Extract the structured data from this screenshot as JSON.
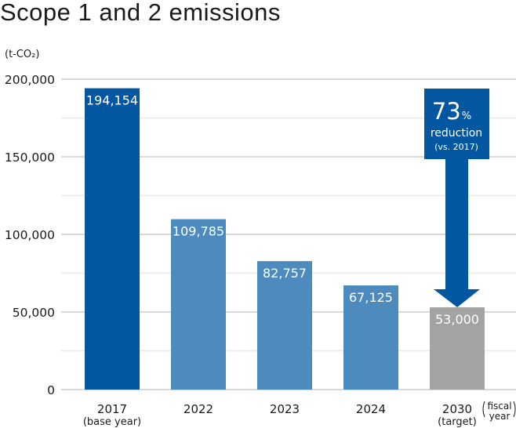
{
  "chart_data": {
    "type": "bar",
    "title": "Scope 1 and 2 emissions",
    "ylabel": "(t-CO₂)",
    "xlabel_note": [
      "fiscal",
      "year"
    ],
    "ylim": [
      0,
      200000
    ],
    "yticks": [
      0,
      50000,
      100000,
      150000,
      200000
    ],
    "ytick_labels": [
      "0",
      "50,000",
      "100,000",
      "150,000",
      "200,000"
    ],
    "minor_gridlines": [
      25000,
      75000,
      125000,
      175000
    ],
    "grid": true,
    "categories": [
      "2017",
      "2022",
      "2023",
      "2024",
      "2030"
    ],
    "category_sublabels": [
      "(base year)",
      "",
      "",
      "",
      "(target)"
    ],
    "values": [
      194154,
      109785,
      82757,
      67125,
      53000
    ],
    "value_labels": [
      "194,154",
      "109,785",
      "82,757",
      "67,125",
      "53,000"
    ],
    "bar_colors": [
      "#0356a0",
      "#4d8bbf",
      "#4d8bbf",
      "#4d8bbf",
      "#a3a3a3"
    ],
    "annotation": {
      "value": "73",
      "unit": "%",
      "line1": "reduction",
      "line2": "(vs. 2017)",
      "color": "#0356a0"
    }
  }
}
